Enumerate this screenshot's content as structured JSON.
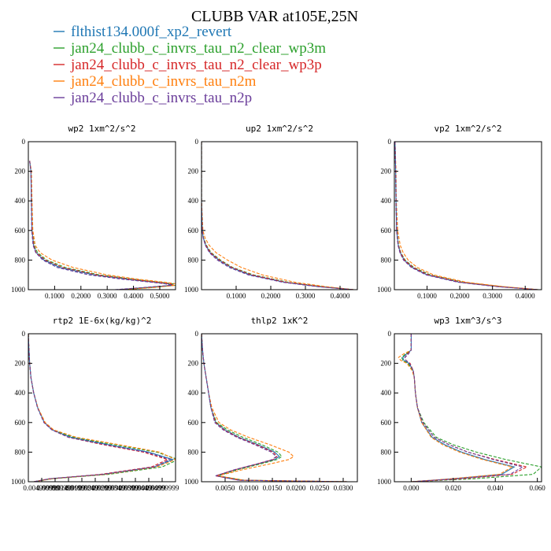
{
  "colors": {
    "blue": "#1f77b4",
    "green": "#2ca02c",
    "red": "#d62728",
    "orange": "#ff7f0e",
    "purple": "#6a3d9a"
  },
  "chart_data": {
    "type": "line",
    "title": "CLUBB VAR at105E,25N",
    "legend": [
      {
        "name": "flthist134.000f_xp2_revert",
        "color": "#1f77b4",
        "dashed": false
      },
      {
        "name": "jan24_clubb_c_invrs_tau_n2_clear_wp3m",
        "color": "#2ca02c",
        "dashed": true
      },
      {
        "name": "jan24_clubb_c_invrs_tau_n2_clear_wp3p",
        "color": "#d62728",
        "dashed": true
      },
      {
        "name": "jan24_clubb_c_invrs_tau_n2m",
        "color": "#ff7f0e",
        "dashed": true
      },
      {
        "name": "jan24_clubb_c_invrs_tau_n2p",
        "color": "#6a3d9a",
        "dashed": true
      }
    ],
    "panels": [
      {
        "title": "wp2  1xm^2/s^2",
        "xlim": [
          0,
          0.56
        ],
        "ylim": [
          1000,
          0
        ],
        "xticks": [
          "0.1000",
          "0.2000",
          "0.3000",
          "0.4000",
          "0.5000"
        ],
        "xtick_values": [
          0.1,
          0.2,
          0.3,
          0.4,
          0.5
        ],
        "yticks": [
          0,
          200,
          400,
          600,
          800,
          1000
        ],
        "y": [
          130,
          200,
          400,
          600,
          700,
          750,
          800,
          850,
          900,
          930,
          950,
          960,
          970,
          985,
          1000
        ],
        "series": [
          [
            0.005,
            0.01,
            0.012,
            0.014,
            0.02,
            0.03,
            0.06,
            0.12,
            0.25,
            0.38,
            0.48,
            0.53,
            0.55,
            0.45,
            0.34
          ],
          [
            0.005,
            0.01,
            0.012,
            0.015,
            0.022,
            0.035,
            0.07,
            0.14,
            0.27,
            0.4,
            0.5,
            0.55,
            0.56,
            0.47,
            0.35
          ],
          [
            0.005,
            0.01,
            0.012,
            0.014,
            0.02,
            0.03,
            0.065,
            0.13,
            0.26,
            0.39,
            0.49,
            0.54,
            0.555,
            0.46,
            0.34
          ],
          [
            0.005,
            0.012,
            0.014,
            0.017,
            0.026,
            0.045,
            0.09,
            0.17,
            0.3,
            0.42,
            0.52,
            0.56,
            0.56,
            0.48,
            0.36
          ],
          [
            0.005,
            0.01,
            0.011,
            0.013,
            0.018,
            0.028,
            0.055,
            0.11,
            0.23,
            0.36,
            0.47,
            0.52,
            0.545,
            0.44,
            0.33
          ]
        ]
      },
      {
        "title": "up2  1xm^2/s^2",
        "xlim": [
          0,
          0.45
        ],
        "ylim": [
          1000,
          0
        ],
        "xticks": [
          "0.1000",
          "0.2000",
          "0.3000",
          "0.4000"
        ],
        "xtick_values": [
          0.1,
          0.2,
          0.3,
          0.4
        ],
        "yticks": [
          0,
          200,
          400,
          600,
          800,
          1000
        ],
        "y": [
          0,
          200,
          400,
          600,
          650,
          700,
          750,
          800,
          850,
          900,
          950,
          980,
          1000
        ],
        "series": [
          [
            0.0,
            0.0,
            0.0,
            0.002,
            0.005,
            0.012,
            0.025,
            0.05,
            0.085,
            0.14,
            0.24,
            0.34,
            0.44
          ],
          [
            0.0,
            0.0,
            0.0,
            0.002,
            0.006,
            0.014,
            0.028,
            0.055,
            0.09,
            0.15,
            0.25,
            0.35,
            0.44
          ],
          [
            0.0,
            0.0,
            0.0,
            0.002,
            0.005,
            0.013,
            0.026,
            0.052,
            0.088,
            0.145,
            0.245,
            0.345,
            0.44
          ],
          [
            0.0,
            0.0,
            0.0,
            0.004,
            0.01,
            0.022,
            0.042,
            0.075,
            0.115,
            0.175,
            0.27,
            0.36,
            0.44
          ],
          [
            0.0,
            0.0,
            0.0,
            0.002,
            0.005,
            0.011,
            0.023,
            0.046,
            0.08,
            0.135,
            0.235,
            0.335,
            0.44
          ]
        ]
      },
      {
        "title": "vp2  1xm^2/s^2",
        "xlim": [
          0,
          0.45
        ],
        "ylim": [
          1000,
          0
        ],
        "xticks": [
          "0.1000",
          "0.2000",
          "0.3000",
          "0.4000"
        ],
        "xtick_values": [
          0.1,
          0.2,
          0.3,
          0.4
        ],
        "yticks": [
          0,
          200,
          400,
          600,
          800,
          1000
        ],
        "y": [
          0,
          200,
          400,
          600,
          700,
          750,
          800,
          850,
          900,
          950,
          980,
          1000
        ],
        "series": [
          [
            0.002,
            0.004,
            0.005,
            0.007,
            0.012,
            0.018,
            0.03,
            0.055,
            0.1,
            0.2,
            0.32,
            0.44
          ],
          [
            0.002,
            0.004,
            0.005,
            0.008,
            0.013,
            0.02,
            0.033,
            0.06,
            0.11,
            0.21,
            0.33,
            0.44
          ],
          [
            0.002,
            0.004,
            0.005,
            0.007,
            0.012,
            0.019,
            0.031,
            0.057,
            0.105,
            0.205,
            0.325,
            0.44
          ],
          [
            0.002,
            0.005,
            0.006,
            0.01,
            0.018,
            0.027,
            0.042,
            0.07,
            0.12,
            0.22,
            0.335,
            0.44
          ],
          [
            0.002,
            0.004,
            0.005,
            0.007,
            0.011,
            0.017,
            0.028,
            0.052,
            0.097,
            0.195,
            0.315,
            0.44
          ]
        ]
      },
      {
        "title": "rtp2  1E-6x(kg/kg)^2",
        "xlim": [
          0,
          0.055
        ],
        "ylim": [
          1000,
          0
        ],
        "xticks": [
          "0.004999999",
          "0.009999999",
          "0.01499999",
          "0.01999999",
          "0.02499999",
          "0.02999999",
          "0.03499999",
          "0.03999999",
          "0.04499999",
          "0.04999999"
        ],
        "xtick_values": [
          0.005,
          0.01,
          0.015,
          0.02,
          0.025,
          0.03,
          0.035,
          0.04,
          0.045,
          0.05
        ],
        "yticks": [
          0,
          200,
          400,
          600,
          800,
          1000
        ],
        "y": [
          0,
          100,
          200,
          300,
          400,
          500,
          600,
          650,
          700,
          750,
          800,
          850,
          900,
          950,
          980,
          1000
        ],
        "series": [
          [
            0.0,
            0.0002,
            0.0005,
            0.001,
            0.002,
            0.0035,
            0.006,
            0.009,
            0.016,
            0.03,
            0.045,
            0.054,
            0.047,
            0.028,
            0.008,
            0.002
          ],
          [
            0.0,
            0.0002,
            0.0005,
            0.001,
            0.002,
            0.0035,
            0.006,
            0.009,
            0.017,
            0.032,
            0.048,
            0.056,
            0.05,
            0.03,
            0.009,
            0.002
          ],
          [
            0.0,
            0.0002,
            0.0005,
            0.001,
            0.002,
            0.0035,
            0.006,
            0.009,
            0.015,
            0.028,
            0.043,
            0.052,
            0.046,
            0.027,
            0.008,
            0.002
          ],
          [
            0.0,
            0.0002,
            0.0005,
            0.001,
            0.002,
            0.0036,
            0.0063,
            0.0095,
            0.018,
            0.034,
            0.049,
            0.055,
            0.048,
            0.029,
            0.009,
            0.002
          ],
          [
            0.0,
            0.0002,
            0.0005,
            0.001,
            0.002,
            0.0034,
            0.0058,
            0.0088,
            0.015,
            0.029,
            0.044,
            0.053,
            0.047,
            0.028,
            0.008,
            0.002
          ]
        ]
      },
      {
        "title": "thlp2  1xK^2",
        "xlim": [
          0,
          0.033
        ],
        "ylim": [
          1000,
          0
        ],
        "xticks": [
          "0.0050",
          "0.0100",
          "0.0150",
          "0.0200",
          "0.0250",
          "0.0300"
        ],
        "xtick_values": [
          0.005,
          0.01,
          0.015,
          0.02,
          0.025,
          0.03
        ],
        "yticks": [
          0,
          200,
          400,
          600,
          800,
          1000
        ],
        "y": [
          0,
          100,
          200,
          300,
          400,
          500,
          600,
          650,
          700,
          750,
          800,
          830,
          850,
          880,
          920,
          960,
          990,
          1000
        ],
        "series": [
          [
            0.0,
            0.0002,
            0.0005,
            0.001,
            0.0015,
            0.002,
            0.003,
            0.005,
            0.008,
            0.012,
            0.0155,
            0.0165,
            0.0155,
            0.012,
            0.007,
            0.003,
            0.008,
            0.031
          ],
          [
            0.0,
            0.0002,
            0.0005,
            0.001,
            0.0015,
            0.002,
            0.0032,
            0.0055,
            0.0088,
            0.0128,
            0.0162,
            0.017,
            0.016,
            0.0125,
            0.0075,
            0.0035,
            0.009,
            0.031
          ],
          [
            0.0,
            0.0002,
            0.0005,
            0.001,
            0.0015,
            0.002,
            0.003,
            0.0048,
            0.0078,
            0.0117,
            0.0152,
            0.016,
            0.0152,
            0.0118,
            0.007,
            0.003,
            0.008,
            0.031
          ],
          [
            0.0,
            0.0002,
            0.0005,
            0.001,
            0.0015,
            0.0022,
            0.0037,
            0.0062,
            0.01,
            0.0145,
            0.0185,
            0.0195,
            0.0185,
            0.0145,
            0.0085,
            0.0035,
            0.009,
            0.031
          ],
          [
            0.0,
            0.0002,
            0.0005,
            0.001,
            0.0015,
            0.002,
            0.0028,
            0.0046,
            0.0075,
            0.0113,
            0.0148,
            0.0158,
            0.015,
            0.0117,
            0.0068,
            0.003,
            0.008,
            0.031
          ]
        ]
      },
      {
        "title": "wp3  1xm^3/s^3",
        "xlim": [
          -0.008,
          0.062
        ],
        "ylim": [
          1000,
          0
        ],
        "xticks": [
          "0.000",
          "0.020",
          "0.040",
          "0.060"
        ],
        "xtick_values": [
          0.0,
          0.02,
          0.04,
          0.06
        ],
        "yticks": [
          0,
          200,
          400,
          600,
          800,
          1000
        ],
        "y": [
          0,
          110,
          140,
          160,
          180,
          200,
          250,
          300,
          400,
          500,
          600,
          700,
          750,
          800,
          850,
          900,
          950,
          980,
          1000
        ],
        "series": [
          [
            0.0,
            0.0,
            -0.0025,
            -0.004,
            -0.0035,
            -0.001,
            0.001,
            0.0015,
            0.002,
            0.003,
            0.005,
            0.01,
            0.016,
            0.024,
            0.035,
            0.049,
            0.043,
            0.02,
            0.0
          ],
          [
            0.0,
            0.0,
            -0.003,
            -0.0045,
            -0.004,
            -0.0015,
            0.0008,
            0.0015,
            0.002,
            0.003,
            0.006,
            0.012,
            0.02,
            0.031,
            0.045,
            0.062,
            0.058,
            0.03,
            0.0
          ],
          [
            0.0,
            0.0,
            -0.002,
            -0.003,
            -0.0025,
            -0.0005,
            0.001,
            0.0015,
            0.002,
            0.003,
            0.0055,
            0.011,
            0.018,
            0.027,
            0.04,
            0.055,
            0.048,
            0.024,
            0.0
          ],
          [
            0.0,
            0.0,
            -0.004,
            -0.006,
            -0.005,
            -0.002,
            0.0005,
            0.0015,
            0.002,
            0.003,
            0.005,
            0.0095,
            0.015,
            0.023,
            0.034,
            0.048,
            0.042,
            0.019,
            0.0
          ],
          [
            0.0,
            0.0,
            -0.0015,
            -0.003,
            -0.0025,
            -0.0008,
            0.001,
            0.0015,
            0.002,
            0.003,
            0.0055,
            0.011,
            0.018,
            0.027,
            0.039,
            0.053,
            0.047,
            0.022,
            0.0
          ]
        ]
      }
    ]
  }
}
